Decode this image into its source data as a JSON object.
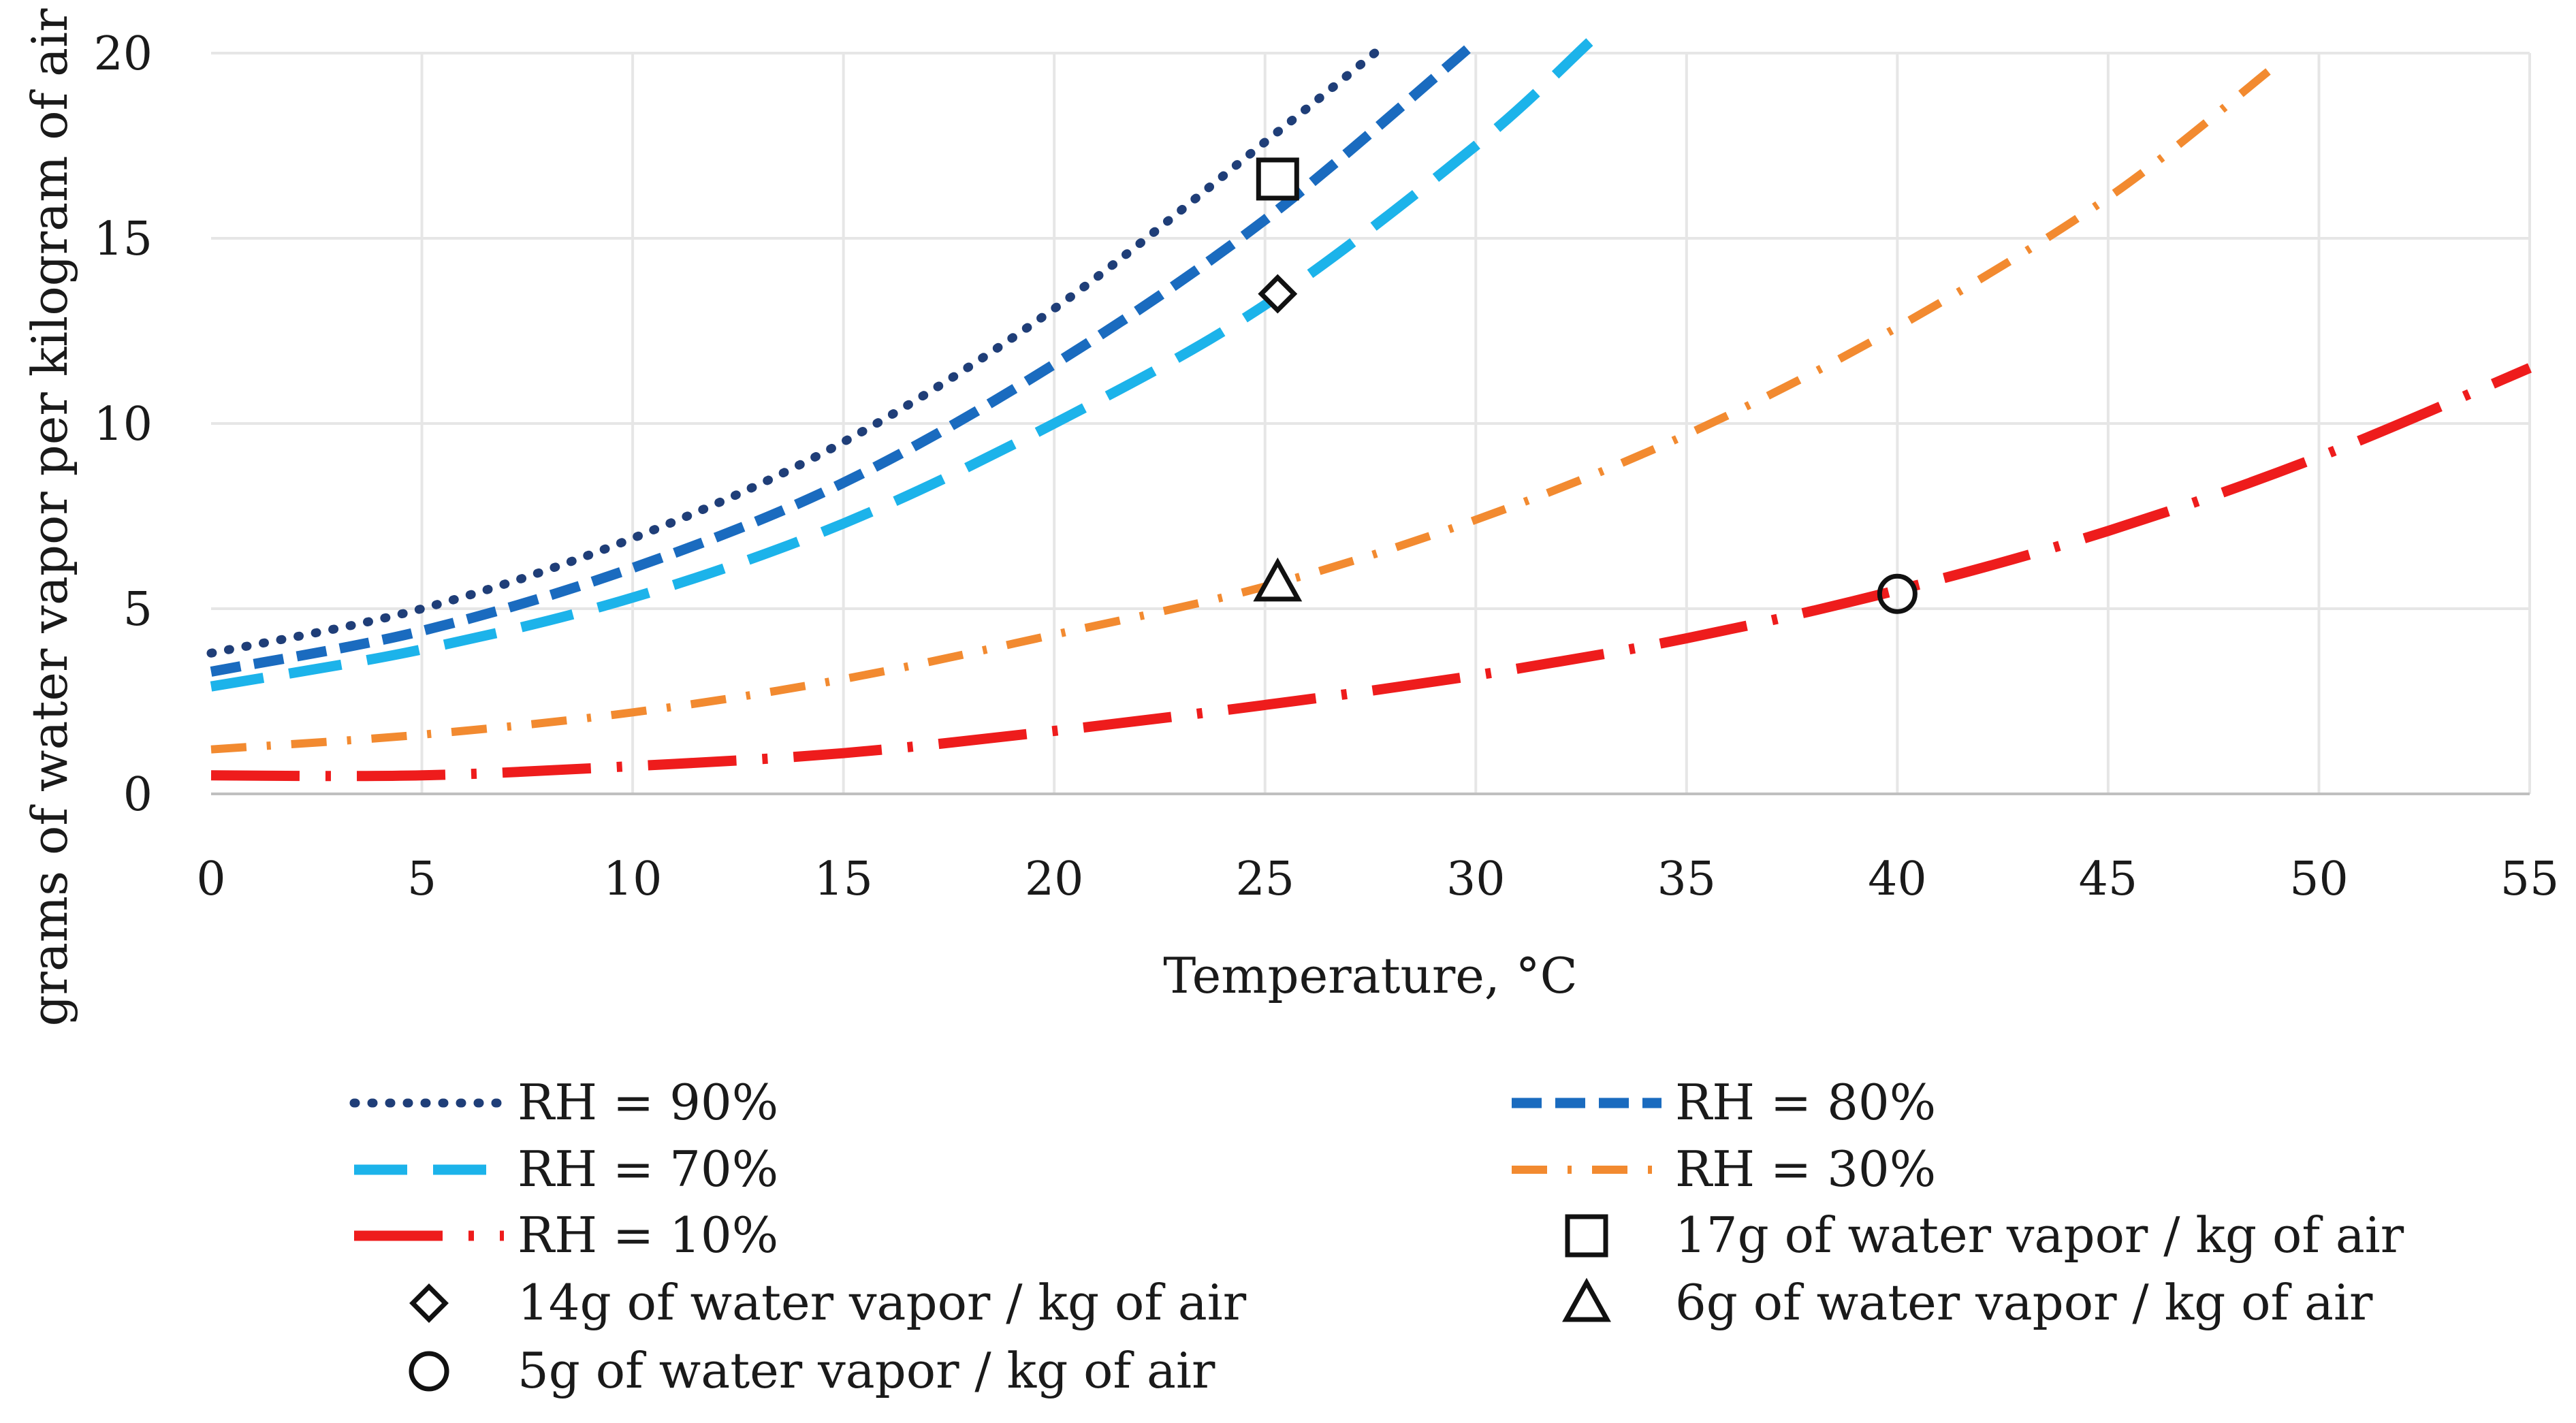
{
  "chart_data": {
    "type": "line",
    "title": "",
    "xlabel": "Temperature, °C",
    "ylabel": "grams of water vapor per kilogram of air",
    "xlim": [
      0,
      55
    ],
    "ylim": [
      0,
      20
    ],
    "xticks": [
      0,
      5,
      10,
      15,
      20,
      25,
      30,
      35,
      40,
      45,
      50,
      55
    ],
    "yticks": [
      0,
      5,
      10,
      15,
      20
    ],
    "grid": true,
    "legend_position": "bottom",
    "series": [
      {
        "name": "RH = 90%",
        "color": "#1f3e78",
        "style": "dotted",
        "x": [
          0,
          5,
          10,
          15,
          20,
          25,
          27.6
        ],
        "y": [
          3.8,
          5.0,
          6.9,
          9.5,
          13.1,
          17.6,
          20.0
        ]
      },
      {
        "name": "RH = 80%",
        "color": "#1a6bbf",
        "style": "dashed",
        "x": [
          0,
          5,
          10,
          15,
          20,
          25,
          30
        ],
        "y": [
          3.3,
          4.4,
          6.1,
          8.4,
          11.6,
          15.5,
          20.3
        ]
      },
      {
        "name": "RH = 70%",
        "color": "#1cb3ea",
        "style": "longdash",
        "x": [
          0,
          5,
          10,
          15,
          20,
          25,
          30,
          32.7
        ],
        "y": [
          2.9,
          3.9,
          5.3,
          7.3,
          10.0,
          13.2,
          17.5,
          20.3
        ]
      },
      {
        "name": "RH = 30%",
        "color": "#f28a30",
        "style": "dashdot",
        "x": [
          0,
          5,
          10,
          15,
          20,
          25,
          30,
          35,
          40,
          45,
          48.9
        ],
        "y": [
          1.2,
          1.6,
          2.2,
          3.1,
          4.3,
          5.6,
          7.4,
          9.7,
          12.6,
          16.1,
          19.6
        ]
      },
      {
        "name": "RH = 10%",
        "color": "#ee1c1c",
        "style": "longdashdot",
        "x": [
          0,
          5,
          10,
          15,
          20,
          25,
          30,
          35,
          40,
          45,
          50,
          55
        ],
        "y": [
          0.5,
          0.5,
          0.75,
          1.1,
          1.7,
          2.4,
          3.2,
          4.2,
          5.5,
          7.1,
          9.1,
          11.5
        ]
      }
    ],
    "markers": [
      {
        "label": "17g of water vapor / kg of air",
        "shape": "square",
        "x": 25.3,
        "y": 16.6
      },
      {
        "label": "14g of water vapor / kg of air",
        "shape": "diamond",
        "x": 25.3,
        "y": 13.5
      },
      {
        "label": "6g of water vapor / kg of air",
        "shape": "triangle",
        "x": 25.3,
        "y": 5.7
      },
      {
        "label": "5g of water vapor / kg of air",
        "shape": "circle",
        "x": 40.0,
        "y": 5.4
      }
    ]
  }
}
